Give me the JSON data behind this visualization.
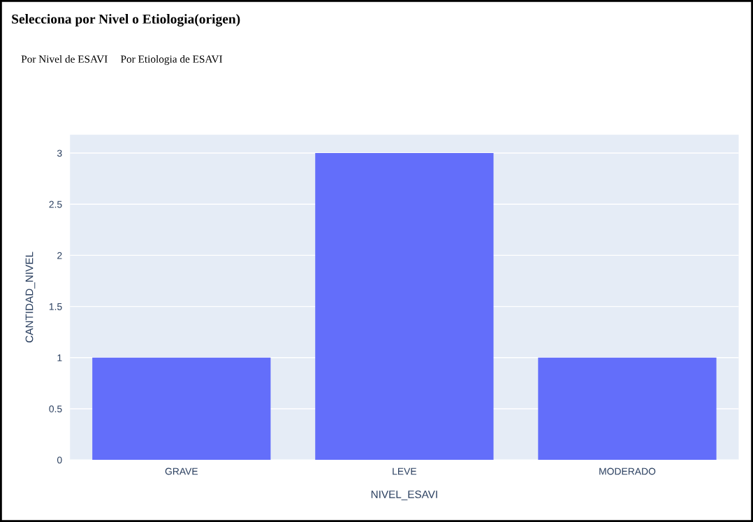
{
  "chart_data": {
    "type": "bar",
    "title": "Selecciona por Nivel o Etiologia(origen)",
    "annotations": [
      "Por Nivel de ESAVI",
      "Por Etiologia de ESAVI"
    ],
    "xlabel": "NIVEL_ESAVI",
    "ylabel": "CANTIDAD_NIVEL",
    "categories": [
      "GRAVE",
      "LEVE",
      "MODERADO"
    ],
    "values": [
      1,
      3,
      1
    ],
    "color": "#636efa",
    "ylim": [
      0,
      3.18
    ],
    "yticks": [
      0,
      0.5,
      1,
      1.5,
      2,
      2.5,
      3
    ],
    "grid": "y"
  }
}
